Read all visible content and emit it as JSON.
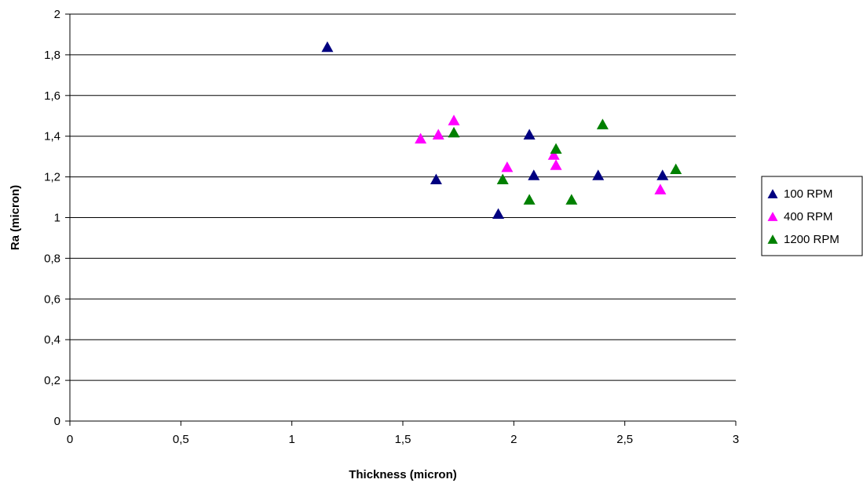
{
  "chart_data": {
    "type": "scatter",
    "xlabel": "Thickness (micron)",
    "ylabel": "Ra (micron)",
    "xlim": [
      0,
      3
    ],
    "ylim": [
      0,
      2
    ],
    "x_ticks": [
      "0",
      "0,5",
      "1",
      "1,5",
      "2",
      "2,5",
      "3"
    ],
    "y_ticks": [
      "0",
      "0,2",
      "0,4",
      "0,6",
      "0,8",
      "1",
      "1,2",
      "1,4",
      "1,6",
      "1,8",
      "2"
    ],
    "grid": "horizontal",
    "legend_position": "right",
    "marker": "triangle",
    "series": [
      {
        "name": "100 RPM",
        "color": "#000080",
        "points": [
          {
            "x": 1.16,
            "y": 1.84
          },
          {
            "x": 1.65,
            "y": 1.19
          },
          {
            "x": 1.93,
            "y": 1.02
          },
          {
            "x": 2.07,
            "y": 1.41
          },
          {
            "x": 2.09,
            "y": 1.21
          },
          {
            "x": 2.38,
            "y": 1.21
          },
          {
            "x": 2.67,
            "y": 1.21
          }
        ]
      },
      {
        "name": "400 RPM",
        "color": "#ff00ff",
        "points": [
          {
            "x": 1.58,
            "y": 1.39
          },
          {
            "x": 1.66,
            "y": 1.41
          },
          {
            "x": 1.73,
            "y": 1.48
          },
          {
            "x": 1.97,
            "y": 1.25
          },
          {
            "x": 2.18,
            "y": 1.31
          },
          {
            "x": 2.19,
            "y": 1.26
          },
          {
            "x": 2.66,
            "y": 1.14
          }
        ]
      },
      {
        "name": "1200 RPM",
        "color": "#008000",
        "points": [
          {
            "x": 1.73,
            "y": 1.42
          },
          {
            "x": 1.95,
            "y": 1.19
          },
          {
            "x": 2.07,
            "y": 1.09
          },
          {
            "x": 2.19,
            "y": 1.34
          },
          {
            "x": 2.26,
            "y": 1.09
          },
          {
            "x": 2.4,
            "y": 1.46
          },
          {
            "x": 2.73,
            "y": 1.24
          }
        ]
      }
    ]
  }
}
